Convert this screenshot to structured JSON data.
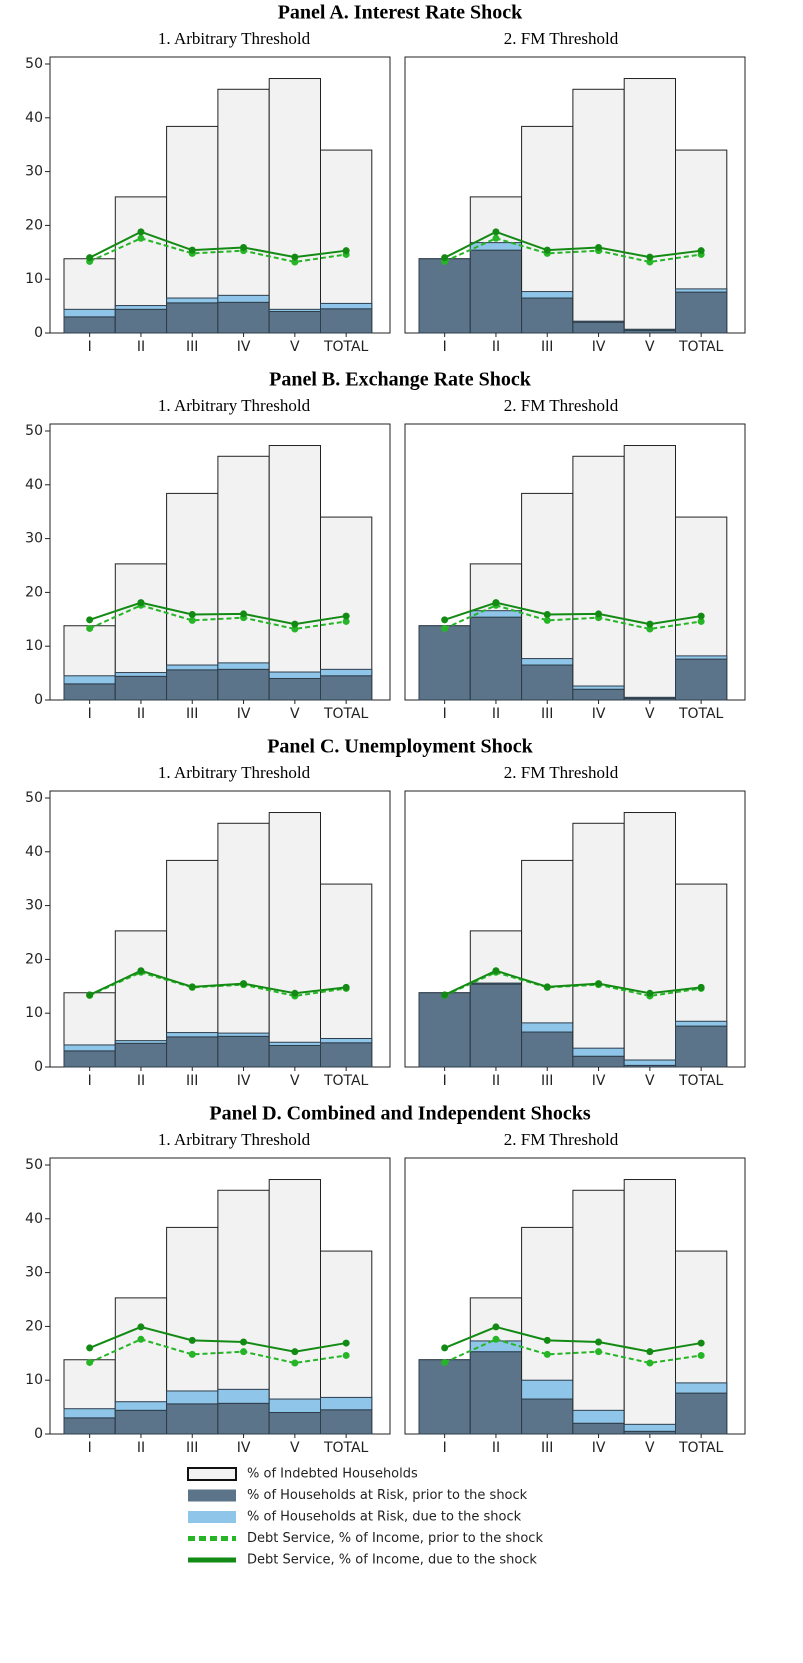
{
  "legend": [
    {
      "name": "% of Indebted Households",
      "color": "#f2f2f2",
      "style": "box"
    },
    {
      "name": "% of Households at Risk, prior to the shock",
      "color": "#5b7489",
      "style": "box"
    },
    {
      "name": "% of Households at Risk, due to the shock",
      "color": "#8ec5e8",
      "style": "box"
    },
    {
      "name": "Debt Service, % of Income, prior to the shock",
      "color": "#26b526",
      "style": "dashed"
    },
    {
      "name": "Debt Service, % of Income, due to the shock",
      "color": "#138a13",
      "style": "solid"
    }
  ],
  "chart_data": [
    {
      "type": "combo",
      "title": "Panel A. Interest Rate Shock",
      "subtitle": "1. Arbitrary Threshold",
      "categories": [
        "I",
        "II",
        "III",
        "IV",
        "V",
        "TOTAL"
      ],
      "ylim": [
        0,
        51.3
      ],
      "yticks": [
        0,
        10,
        20,
        30,
        40,
        50
      ],
      "series": [
        {
          "values": [
            13.8,
            25.3,
            38.4,
            45.3,
            47.3,
            34.0
          ]
        },
        {
          "values": [
            3.0,
            4.4,
            5.6,
            5.7,
            4.0,
            4.5
          ]
        },
        {
          "values": [
            1.4,
            0.7,
            0.9,
            1.3,
            0.4,
            1.0
          ]
        },
        {
          "values": [
            13.3,
            17.6,
            14.8,
            15.3,
            13.2,
            14.6
          ]
        },
        {
          "values": [
            14.0,
            18.8,
            15.4,
            15.9,
            14.1,
            15.3
          ]
        }
      ]
    },
    {
      "type": "combo",
      "subtitle": "2. FM Threshold",
      "categories": [
        "I",
        "II",
        "III",
        "IV",
        "V",
        "TOTAL"
      ],
      "ylim": [
        0,
        51.3
      ],
      "series": [
        {
          "values": [
            13.8,
            25.3,
            38.4,
            45.3,
            47.3,
            34.0
          ]
        },
        {
          "values": [
            13.8,
            15.4,
            6.5,
            2.0,
            0.5,
            7.6
          ]
        },
        {
          "values": [
            0,
            1.4,
            1.2,
            0.2,
            0.2,
            0.6
          ]
        },
        {
          "values": [
            13.3,
            17.6,
            14.8,
            15.3,
            13.2,
            14.6
          ]
        },
        {
          "values": [
            14.0,
            18.8,
            15.4,
            15.9,
            14.1,
            15.3
          ]
        }
      ]
    },
    {
      "type": "combo",
      "title": "Panel B. Exchange Rate Shock",
      "subtitle": "1. Arbitrary Threshold",
      "categories": [
        "I",
        "II",
        "III",
        "IV",
        "V",
        "TOTAL"
      ],
      "ylim": [
        0,
        51.3
      ],
      "yticks": [
        0,
        10,
        20,
        30,
        40,
        50
      ],
      "series": [
        {
          "values": [
            13.8,
            25.3,
            38.4,
            45.3,
            47.3,
            34.0
          ]
        },
        {
          "values": [
            3.0,
            4.4,
            5.6,
            5.7,
            4.0,
            4.5
          ]
        },
        {
          "values": [
            1.5,
            0.7,
            0.9,
            1.2,
            1.2,
            1.2
          ]
        },
        {
          "values": [
            13.3,
            17.6,
            14.8,
            15.3,
            13.2,
            14.6
          ]
        },
        {
          "values": [
            14.9,
            18.1,
            15.9,
            16.0,
            14.1,
            15.6
          ]
        }
      ]
    },
    {
      "type": "combo",
      "subtitle": "2. FM Threshold",
      "categories": [
        "I",
        "II",
        "III",
        "IV",
        "V",
        "TOTAL"
      ],
      "ylim": [
        0,
        51.3
      ],
      "series": [
        {
          "values": [
            13.8,
            25.3,
            38.4,
            45.3,
            47.3,
            34.0
          ]
        },
        {
          "values": [
            13.8,
            15.4,
            6.5,
            2.0,
            0.3,
            7.6
          ]
        },
        {
          "values": [
            0,
            1.2,
            1.2,
            0.6,
            0.2,
            0.6
          ]
        },
        {
          "values": [
            13.3,
            17.6,
            14.8,
            15.3,
            13.2,
            14.6
          ]
        },
        {
          "values": [
            14.9,
            18.1,
            15.9,
            16.0,
            14.1,
            15.6
          ]
        }
      ]
    },
    {
      "type": "combo",
      "title": "Panel C. Unemployment Shock",
      "subtitle": "1. Arbitrary Threshold",
      "categories": [
        "I",
        "II",
        "III",
        "IV",
        "V",
        "TOTAL"
      ],
      "ylim": [
        0,
        51.3
      ],
      "yticks": [
        0,
        10,
        20,
        30,
        40,
        50
      ],
      "series": [
        {
          "values": [
            13.8,
            25.3,
            38.4,
            45.3,
            47.3,
            34.0
          ]
        },
        {
          "values": [
            3.0,
            4.4,
            5.6,
            5.7,
            4.0,
            4.5
          ]
        },
        {
          "values": [
            1.1,
            0.5,
            0.8,
            0.6,
            0.6,
            0.8
          ]
        },
        {
          "values": [
            13.3,
            17.6,
            14.8,
            15.3,
            13.2,
            14.6
          ]
        },
        {
          "values": [
            13.4,
            17.9,
            14.9,
            15.5,
            13.7,
            14.8
          ]
        }
      ]
    },
    {
      "type": "combo",
      "subtitle": "2. FM Threshold",
      "categories": [
        "I",
        "II",
        "III",
        "IV",
        "V",
        "TOTAL"
      ],
      "ylim": [
        0,
        51.3
      ],
      "series": [
        {
          "values": [
            13.8,
            25.3,
            38.4,
            45.3,
            47.3,
            34.0
          ]
        },
        {
          "values": [
            13.8,
            15.4,
            6.5,
            2.0,
            0.3,
            7.6
          ]
        },
        {
          "values": [
            0,
            0.2,
            1.7,
            1.5,
            1.0,
            0.9
          ]
        },
        {
          "values": [
            13.3,
            17.6,
            14.8,
            15.3,
            13.2,
            14.6
          ]
        },
        {
          "values": [
            13.4,
            17.9,
            14.9,
            15.5,
            13.7,
            14.8
          ]
        }
      ]
    },
    {
      "type": "combo",
      "title": "Panel D. Combined and Independent Shocks",
      "subtitle": "1. Arbitrary Threshold",
      "categories": [
        "I",
        "II",
        "III",
        "IV",
        "V",
        "TOTAL"
      ],
      "ylim": [
        0,
        51.3
      ],
      "yticks": [
        0,
        10,
        20,
        30,
        40,
        50
      ],
      "series": [
        {
          "values": [
            13.8,
            25.3,
            38.4,
            45.3,
            47.3,
            34.0
          ]
        },
        {
          "values": [
            3.0,
            4.4,
            5.6,
            5.7,
            4.0,
            4.5
          ]
        },
        {
          "values": [
            1.7,
            1.6,
            2.4,
            2.6,
            2.5,
            2.3
          ]
        },
        {
          "values": [
            13.3,
            17.6,
            14.8,
            15.3,
            13.2,
            14.6
          ]
        },
        {
          "values": [
            16.0,
            19.9,
            17.4,
            17.1,
            15.3,
            16.9
          ]
        }
      ]
    },
    {
      "type": "combo",
      "subtitle": "2. FM Threshold",
      "categories": [
        "I",
        "II",
        "III",
        "IV",
        "V",
        "TOTAL"
      ],
      "ylim": [
        0,
        51.3
      ],
      "series": [
        {
          "values": [
            13.8,
            25.3,
            38.4,
            45.3,
            47.3,
            34.0
          ]
        },
        {
          "values": [
            13.8,
            15.3,
            6.5,
            2.0,
            0.5,
            7.6
          ]
        },
        {
          "values": [
            0,
            2.0,
            3.5,
            2.4,
            1.3,
            1.9
          ]
        },
        {
          "values": [
            13.3,
            17.6,
            14.8,
            15.3,
            13.2,
            14.6
          ]
        },
        {
          "values": [
            16.0,
            19.9,
            17.4,
            17.1,
            15.3,
            16.9
          ]
        }
      ]
    }
  ]
}
